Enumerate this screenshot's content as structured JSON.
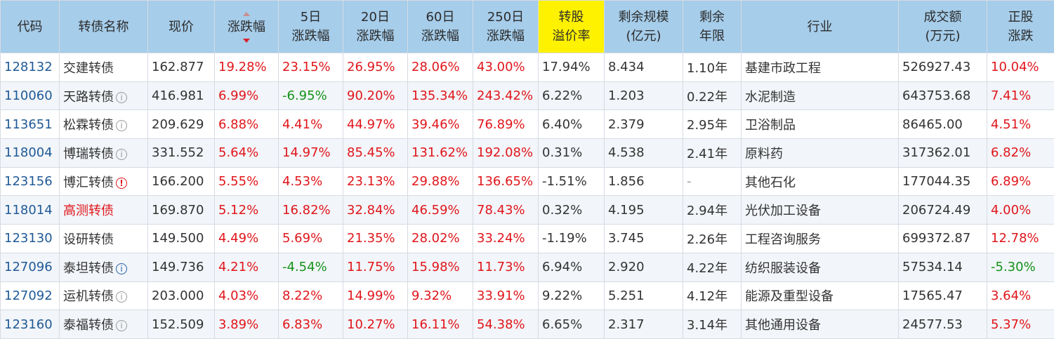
{
  "headers": [
    {
      "key": "code",
      "line1": "代码",
      "line2": ""
    },
    {
      "key": "name",
      "line1": "转债名称",
      "line2": ""
    },
    {
      "key": "price",
      "line1": "现价",
      "line2": ""
    },
    {
      "key": "change",
      "line1": "涨跌幅",
      "line2": ""
    },
    {
      "key": "d5",
      "line1": "5日",
      "line2": "涨跌幅"
    },
    {
      "key": "d20",
      "line1": "20日",
      "line2": "涨跌幅"
    },
    {
      "key": "d60",
      "line1": "60日",
      "line2": "涨跌幅"
    },
    {
      "key": "d250",
      "line1": "250日",
      "line2": "涨跌幅"
    },
    {
      "key": "premium",
      "line1": "转股",
      "line2": "溢价率"
    },
    {
      "key": "size",
      "line1": "剩余规模",
      "line2": "(亿元)"
    },
    {
      "key": "years",
      "line1": "剩余",
      "line2": "年限"
    },
    {
      "key": "industry",
      "line1": "行业",
      "line2": ""
    },
    {
      "key": "turnover",
      "line1": "成交额",
      "line2": "(万元)"
    },
    {
      "key": "stock",
      "line1": "正股",
      "line2": "涨跌"
    }
  ],
  "colors": {
    "header_bg": "#a6cdea",
    "highlight_header": "#fff200",
    "up": "#e0161b",
    "down": "#149219",
    "code": "#1f5a96"
  },
  "rows": [
    {
      "code": "128132",
      "name": "交建转债",
      "icon": "",
      "price": "162.877",
      "change": "19.28%",
      "d5": "23.15%",
      "d20": "26.95%",
      "d60": "28.06%",
      "d250": "43.00%",
      "premium": "17.94%",
      "size": "8.434",
      "years": "1.10年",
      "industry": "基建市政工程",
      "turnover": "526927.43",
      "stock": "10.04%"
    },
    {
      "code": "110060",
      "name": "天路转债",
      "icon": "info-gray",
      "price": "416.981",
      "change": "6.99%",
      "d5": "-6.95%",
      "d20": "90.20%",
      "d60": "135.34%",
      "d250": "243.42%",
      "premium": "6.22%",
      "size": "1.203",
      "years": "0.22年",
      "industry": "水泥制造",
      "turnover": "643753.68",
      "stock": "7.41%"
    },
    {
      "code": "113651",
      "name": "松霖转债",
      "icon": "info-gray",
      "price": "209.629",
      "change": "6.88%",
      "d5": "4.41%",
      "d20": "44.97%",
      "d60": "39.46%",
      "d250": "76.89%",
      "premium": "6.40%",
      "size": "2.379",
      "years": "2.95年",
      "industry": "卫浴制品",
      "turnover": "86465.00",
      "stock": "4.51%"
    },
    {
      "code": "118004",
      "name": "博瑞转债",
      "icon": "info-gray",
      "price": "331.552",
      "change": "5.64%",
      "d5": "14.97%",
      "d20": "85.45%",
      "d60": "131.62%",
      "d250": "192.08%",
      "premium": "0.31%",
      "size": "4.538",
      "years": "2.41年",
      "industry": "原料药",
      "turnover": "317362.01",
      "stock": "6.82%"
    },
    {
      "code": "123156",
      "name": "博汇转债",
      "icon": "info-red",
      "price": "166.200",
      "change": "5.55%",
      "d5": "4.53%",
      "d20": "23.13%",
      "d60": "29.88%",
      "d250": "136.65%",
      "premium": "-1.51%",
      "size": "1.856",
      "years": "-",
      "industry": "其他石化",
      "turnover": "177044.35",
      "stock": "6.89%"
    },
    {
      "code": "118014",
      "name": "高测转债",
      "icon": "",
      "name_red": true,
      "price": "169.870",
      "change": "5.12%",
      "d5": "16.82%",
      "d20": "32.84%",
      "d60": "46.59%",
      "d250": "78.43%",
      "premium": "0.32%",
      "size": "4.195",
      "years": "2.94年",
      "industry": "光伏加工设备",
      "turnover": "206724.49",
      "stock": "4.00%"
    },
    {
      "code": "123130",
      "name": "设研转债",
      "icon": "",
      "price": "149.500",
      "change": "4.49%",
      "d5": "5.69%",
      "d20": "21.35%",
      "d60": "28.02%",
      "d250": "33.24%",
      "premium": "-1.19%",
      "size": "3.745",
      "years": "2.26年",
      "industry": "工程咨询服务",
      "turnover": "699372.87",
      "stock": "12.78%"
    },
    {
      "code": "127096",
      "name": "泰坦转债",
      "icon": "info-blue",
      "price": "149.736",
      "change": "4.21%",
      "d5": "-4.54%",
      "d20": "11.75%",
      "d60": "15.98%",
      "d250": "11.73%",
      "premium": "6.94%",
      "size": "2.920",
      "years": "4.22年",
      "industry": "纺织服装设备",
      "turnover": "57534.14",
      "stock": "-5.30%"
    },
    {
      "code": "127092",
      "name": "运机转债",
      "icon": "info-gray",
      "price": "203.000",
      "change": "4.03%",
      "d5": "8.22%",
      "d20": "14.99%",
      "d60": "9.32%",
      "d250": "33.91%",
      "premium": "9.22%",
      "size": "5.251",
      "years": "4.12年",
      "industry": "能源及重型设备",
      "turnover": "17565.47",
      "stock": "3.64%"
    },
    {
      "code": "123160",
      "name": "泰福转债",
      "icon": "info-gray",
      "price": "152.509",
      "change": "3.89%",
      "d5": "6.83%",
      "d20": "10.27%",
      "d60": "16.11%",
      "d250": "54.38%",
      "premium": "6.65%",
      "size": "2.317",
      "years": "3.14年",
      "industry": "其他通用设备",
      "turnover": "24577.53",
      "stock": "5.37%"
    }
  ]
}
